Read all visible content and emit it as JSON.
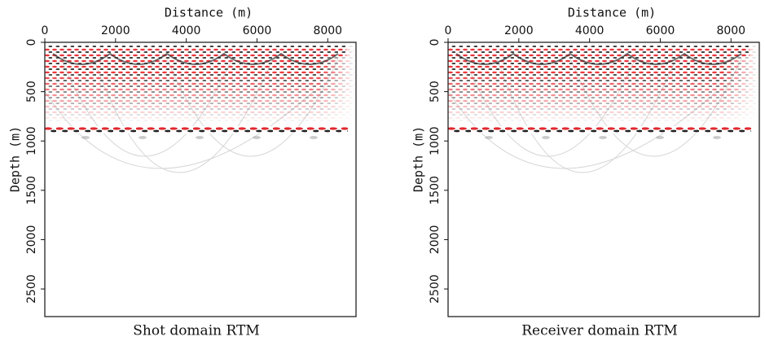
{
  "chart_data": [
    {
      "type": "image",
      "title": "Shot domain RTM",
      "xlabel": "Distance (m)",
      "ylabel": "Depth (m)",
      "xlim": [
        0,
        8800
      ],
      "xticks": [
        0,
        2000,
        4000,
        6000,
        8000
      ],
      "ylim": [
        0,
        2780
      ],
      "yticks": [
        0,
        500,
        1000,
        1500,
        2000,
        2500
      ],
      "y_inverted": true
    },
    {
      "type": "image",
      "title": "Receiver domain RTM",
      "xlabel": "Distance (m)",
      "ylabel": "Depth (m)",
      "xlim": [
        0,
        8800
      ],
      "xticks": [
        0,
        2000,
        4000,
        6000,
        8000
      ],
      "ylim": [
        0,
        2780
      ],
      "yticks": [
        0,
        500,
        1000,
        1500,
        2000,
        2500
      ],
      "y_inverted": true
    }
  ]
}
